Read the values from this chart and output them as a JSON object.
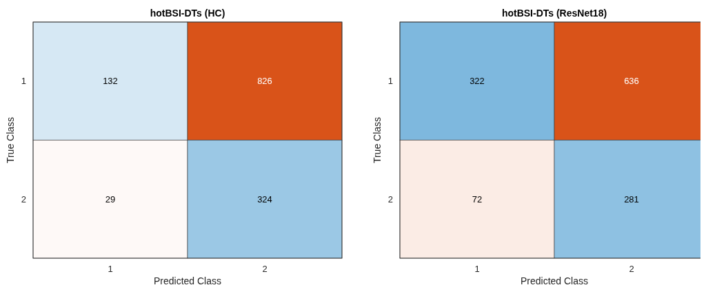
{
  "chart_data": [
    {
      "type": "heatmap",
      "title": "hotBSI-DTs (HC)",
      "xlabel": "Predicted Class",
      "ylabel": "True Class",
      "categories": [
        "1",
        "2"
      ],
      "y_categories": [
        "1",
        "2"
      ],
      "data_labels": true,
      "cells": [
        [
          132,
          826
        ],
        [
          29,
          324
        ]
      ]
    },
    {
      "type": "heatmap",
      "title": "hotBSI-DTs (ResNet18)",
      "xlabel": "Predicted Class",
      "ylabel": "True Class",
      "categories": [
        "1",
        "2"
      ],
      "y_categories": [
        "1",
        "2"
      ],
      "data_labels": true,
      "cells": [
        [
          322,
          636
        ],
        [
          72,
          281
        ]
      ]
    }
  ]
}
